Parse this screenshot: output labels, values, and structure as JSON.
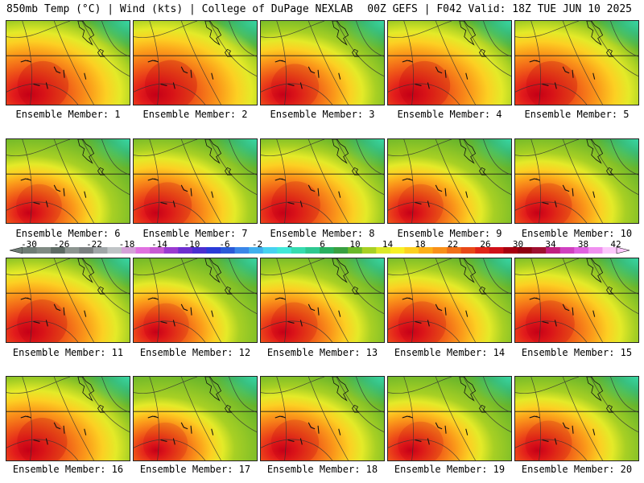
{
  "header": {
    "left": "850mb Temp (°C) | Wind (kts) | College of DuPage NEXLAB",
    "right": "00Z GEFS | F042 Valid: 18Z TUE JUN 10 2025"
  },
  "panels": [
    {
      "label": "Ensemble Member: 1",
      "heat": 0.8
    },
    {
      "label": "Ensemble Member: 2",
      "heat": 0.85
    },
    {
      "label": "Ensemble Member: 3",
      "heat": 0.65
    },
    {
      "label": "Ensemble Member: 4",
      "heat": 0.8
    },
    {
      "label": "Ensemble Member: 5",
      "heat": 0.8
    },
    {
      "label": "Ensemble Member: 6",
      "heat": 0.55
    },
    {
      "label": "Ensemble Member: 7",
      "heat": 0.65
    },
    {
      "label": "Ensemble Member: 8",
      "heat": 0.7
    },
    {
      "label": "Ensemble Member: 9",
      "heat": 0.55
    },
    {
      "label": "Ensemble Member: 10",
      "heat": 0.6
    },
    {
      "label": "Ensemble Member: 11",
      "heat": 0.75
    },
    {
      "label": "Ensemble Member: 12",
      "heat": 0.55
    },
    {
      "label": "Ensemble Member: 13",
      "heat": 0.6
    },
    {
      "label": "Ensemble Member: 14",
      "heat": 0.65
    },
    {
      "label": "Ensemble Member: 15",
      "heat": 0.7
    },
    {
      "label": "Ensemble Member: 16",
      "heat": 0.75
    },
    {
      "label": "Ensemble Member: 17",
      "heat": 0.5
    },
    {
      "label": "Ensemble Member: 18",
      "heat": 0.65
    },
    {
      "label": "Ensemble Member: 19",
      "heat": 0.55
    },
    {
      "label": "Ensemble Member: 20",
      "heat": 0.6
    }
  ],
  "colorbar": {
    "labels": [
      "-30",
      "-26",
      "-22",
      "-18",
      "-14",
      "-10",
      "-6",
      "-2",
      "2",
      "6",
      "10",
      "14",
      "18",
      "22",
      "26",
      "30",
      "34",
      "38",
      "42"
    ],
    "colors": [
      "#6f7c75",
      "#7f8a83",
      "#5d6a63",
      "#8c9590",
      "#7a7f80",
      "#a0a6a8",
      "#bfc4c6",
      "#d4a2d8",
      "#e070e0",
      "#c85ad4",
      "#9a3ad0",
      "#6d2ed0",
      "#4a2ed0",
      "#2a3ad8",
      "#2a5ad8",
      "#3a86e8",
      "#41b0ee",
      "#47d2f0",
      "#42e8d8",
      "#36dcb0",
      "#2ec890",
      "#28b060",
      "#38a040",
      "#6ab82a",
      "#a8d024",
      "#dce828",
      "#f8f026",
      "#fcd020",
      "#fcb018",
      "#f89018",
      "#f07018",
      "#e84818",
      "#e02418",
      "#d01018",
      "#a80010",
      "#900010",
      "#a01030",
      "#c02080",
      "#d040c0",
      "#e060e0",
      "#f090f0",
      "#fcc8fc"
    ]
  }
}
